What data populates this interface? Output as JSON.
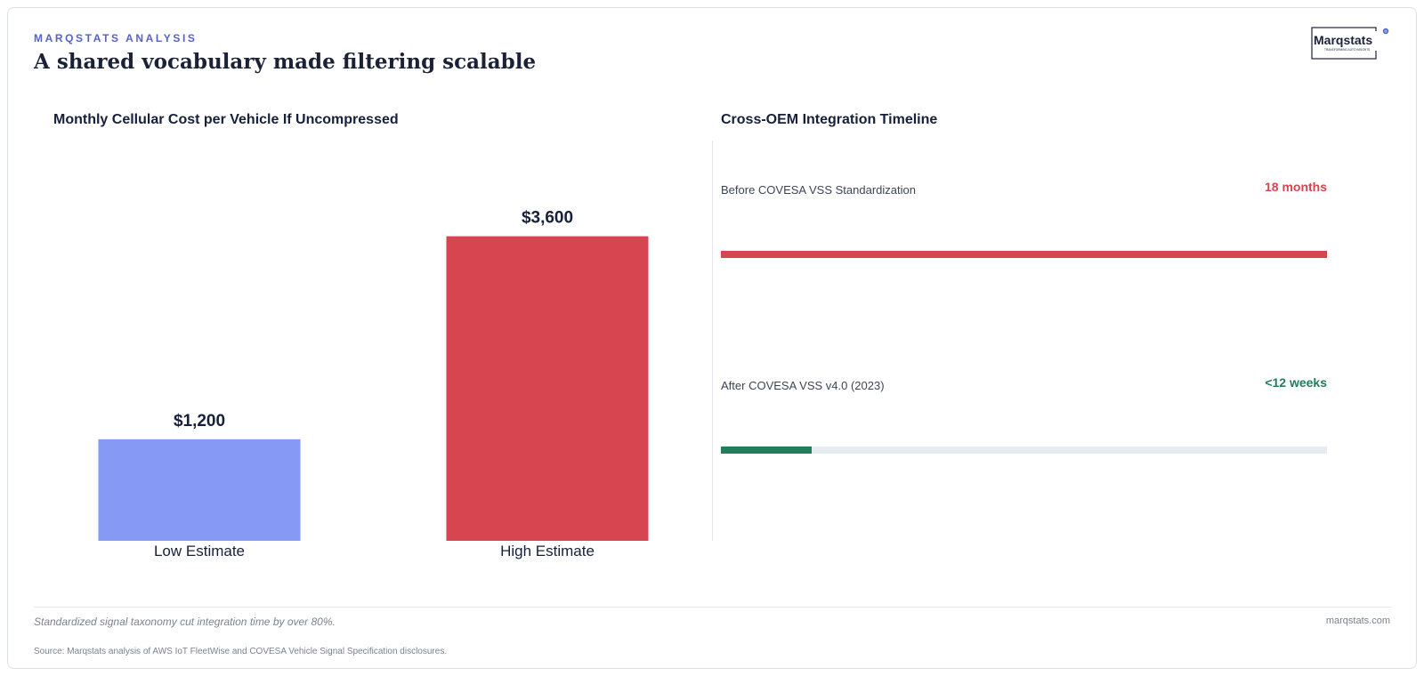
{
  "header": {
    "eyebrow": "MARQSTATS ANALYSIS",
    "headline": "A shared vocabulary made filtering scalable",
    "logo_text": "Marqstats",
    "logo_tagline": "TRANSFORMING AUTO INSIGHTS"
  },
  "colors": {
    "accent": "#5563c1",
    "low_bar": "#8599f5",
    "high_bar": "#d64550",
    "before": "#d64550",
    "after": "#217d5b",
    "track": "#e6ebf2"
  },
  "chart_data": [
    {
      "type": "bar",
      "title": "Monthly Cellular Cost per Vehicle If Uncompressed",
      "categories": [
        "Low Estimate",
        "High Estimate"
      ],
      "values": [
        1200,
        3600
      ],
      "value_labels": [
        "$1,200",
        "$3,600"
      ],
      "ylim": [
        0,
        4500
      ],
      "grid": false,
      "xlabel": "",
      "ylabel": ""
    },
    {
      "type": "bar",
      "orientation": "horizontal",
      "title": "Cross-OEM Integration Timeline",
      "categories": [
        "Before COVESA VSS Standardization",
        "After COVESA VSS v4.0 (2023)"
      ],
      "value_labels": [
        "18 months",
        "<12 weeks"
      ],
      "values": [
        1.0,
        0.15
      ],
      "grid": false
    }
  ],
  "footer": {
    "takeaway": "Standardized signal taxonomy cut integration time by over 80%.",
    "site": "marqstats.com",
    "source": "Source: Marqstats analysis of AWS IoT FleetWise and COVESA Vehicle Signal Specification disclosures."
  }
}
